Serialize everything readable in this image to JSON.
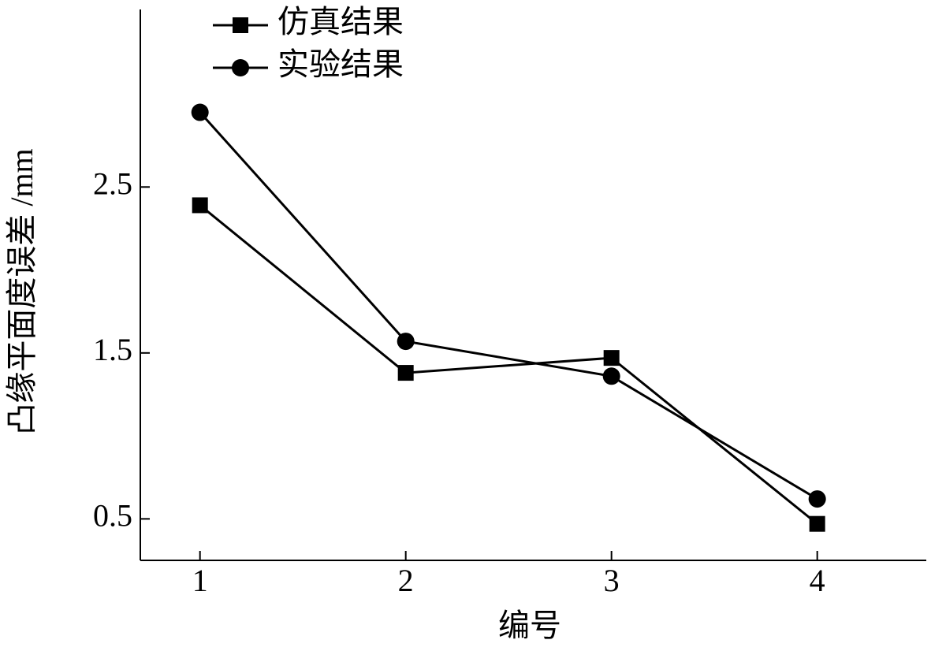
{
  "chart_data": {
    "type": "line",
    "x_label": "编号",
    "y_label": "凸缘平面度误差 /mm",
    "x": [
      1,
      2,
      3,
      4
    ],
    "series": [
      {
        "name": "仿真结果",
        "color": "#000000",
        "marker": "square",
        "values": [
          2.39,
          1.38,
          1.47,
          0.47
        ]
      },
      {
        "name": "实验结果",
        "color": "#000000",
        "marker": "circle",
        "values": [
          2.95,
          1.57,
          1.36,
          0.62
        ]
      }
    ],
    "xlim": [
      0.71,
      4.53
    ],
    "xticks": [
      1,
      2,
      3,
      4
    ],
    "ylim": [
      0.25,
      3.57
    ],
    "yticks": [
      0.5,
      1.5,
      2.5
    ],
    "grid": false,
    "legend": "upper-left"
  }
}
